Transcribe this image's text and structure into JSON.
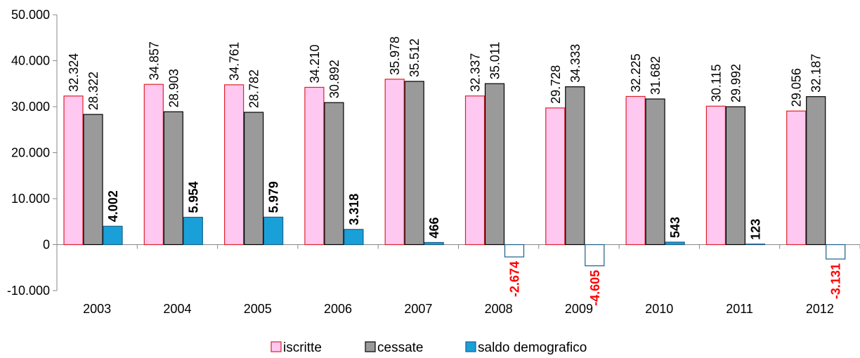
{
  "chart_data": {
    "type": "bar",
    "categories": [
      "2003",
      "2004",
      "2005",
      "2006",
      "2007",
      "2008",
      "2009",
      "2010",
      "2011",
      "2012"
    ],
    "series": [
      {
        "name": "iscritte",
        "values": [
          32324,
          34857,
          34761,
          34210,
          35978,
          32337,
          29728,
          32225,
          30115,
          29056
        ],
        "labels": [
          "32.324",
          "34.857",
          "34.761",
          "34.210",
          "35.978",
          "32.337",
          "29.728",
          "32.225",
          "30.115",
          "29.056"
        ],
        "fill": "#ffc8f0",
        "stroke": "#e0202a"
      },
      {
        "name": "cessate",
        "values": [
          28322,
          28903,
          28782,
          30892,
          35512,
          35011,
          34333,
          31682,
          29992,
          32187
        ],
        "labels": [
          "28.322",
          "28.903",
          "28.782",
          "30.892",
          "35.512",
          "35.011",
          "34.333",
          "31.682",
          "29.992",
          "32.187"
        ],
        "fill": "#9a9a9a",
        "stroke": "#000000"
      },
      {
        "name": "saldo demografico",
        "values": [
          4002,
          5954,
          5979,
          3318,
          466,
          -2674,
          -4605,
          543,
          123,
          -3131
        ],
        "labels": [
          "4.002",
          "5.954",
          "5.979",
          "3.318",
          "466",
          "-2.674",
          "-4.605",
          "543",
          "123",
          "-3.131"
        ],
        "fill": "#1aa0d8",
        "stroke": "#1a5f8a",
        "negative_fill": "#ffffff",
        "negative_label_color": "#ff0000"
      }
    ],
    "yticks": [
      "-10.000",
      "0",
      "10.000",
      "20.000",
      "30.000",
      "40.000",
      "50.000"
    ],
    "ytick_values": [
      -10000,
      0,
      10000,
      20000,
      30000,
      40000,
      50000
    ],
    "ylim": [
      -10000,
      50000
    ],
    "legend_position": "bottom",
    "grid": false
  }
}
